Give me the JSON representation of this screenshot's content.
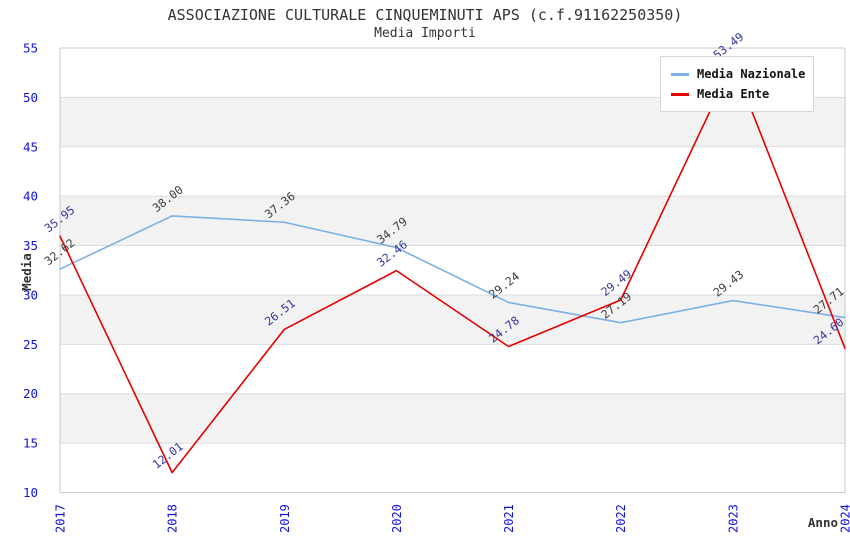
{
  "chart_data": {
    "type": "line",
    "title": "ASSOCIAZIONE CULTURALE CINQUEMINUTI APS (c.f.91162250350)",
    "subtitle": "Media Importi",
    "xlabel": "Anno",
    "ylabel": "Media",
    "categories": [
      "2017",
      "2018",
      "2019",
      "2020",
      "2021",
      "2022",
      "2023",
      "2024"
    ],
    "series": [
      {
        "name": "Media Nazionale",
        "color": "#7CB0E3",
        "label_color": "#3D3D3D",
        "values": [
          32.62,
          38.0,
          37.36,
          34.79,
          29.24,
          27.19,
          29.43,
          27.71
        ]
      },
      {
        "name": "Media Ente",
        "color": "#E60000",
        "label_color": "#3535A5",
        "values": [
          35.95,
          12.01,
          26.51,
          32.46,
          24.78,
          29.49,
          53.49,
          24.6
        ]
      }
    ],
    "ylim": [
      10,
      55
    ],
    "ytick_step": 5,
    "yticks": [
      10,
      15,
      20,
      25,
      30,
      35,
      40,
      45,
      50,
      55
    ],
    "grid": "horizontal gridlines with alternating shaded bands",
    "legend_position": "top-right",
    "data_label_format": "2 decimals, rotated",
    "colors": {
      "tick_label": "#1212DF",
      "band": "#F2F2F2",
      "gridline": "#DBDBDB",
      "border": "#C9C9C9",
      "title": "#333333",
      "axis_title": "#333333",
      "legend_text": "#111111",
      "background": "#FFFFFF"
    }
  }
}
